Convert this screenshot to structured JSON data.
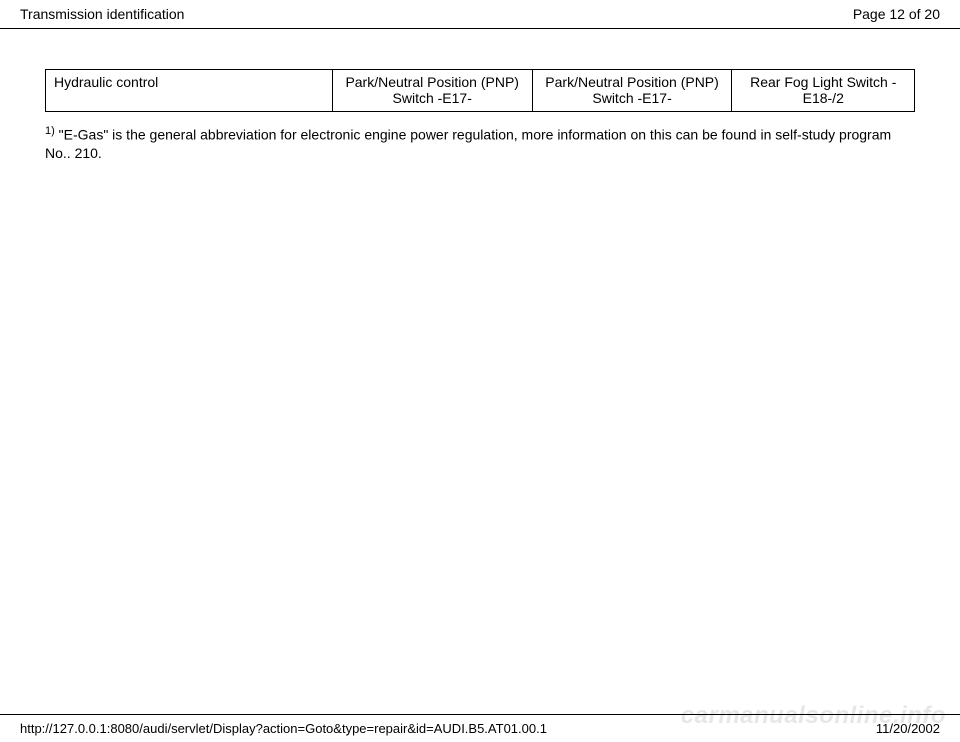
{
  "header": {
    "title": "Transmission identification",
    "page_indicator": "Page 12 of 20"
  },
  "table": {
    "row": [
      "Hydraulic control",
      "Park/Neutral Position (PNP) Switch -E17-",
      "Park/Neutral Position (PNP) Switch -E17-",
      "Rear Fog Light Switch -E18-/2"
    ]
  },
  "footnote": {
    "sup": "1)",
    "text": " \"E-Gas\" is the general abbreviation for electronic engine power regulation, more information on this can be found in self-study program No.. 210."
  },
  "footer": {
    "url": "http://127.0.0.1:8080/audi/servlet/Display?action=Goto&type=repair&id=AUDI.B5.AT01.00.1",
    "date": "11/20/2002"
  },
  "watermark": "carmanualsonline.info"
}
